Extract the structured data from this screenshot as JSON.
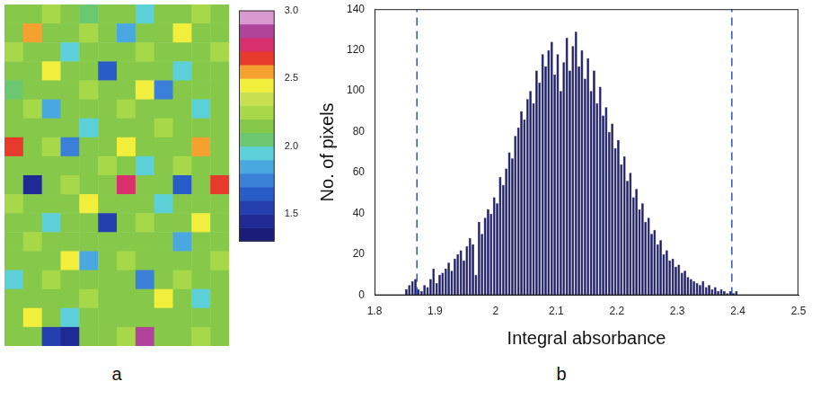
{
  "chart_data": [
    {
      "type": "heatmap",
      "panel_label": "a",
      "cells": [
        [
          2.1,
          2.1,
          2.2,
          2.1,
          2.0,
          2.1,
          2.1,
          1.9,
          2.1,
          2.1,
          2.2,
          2.1
        ],
        [
          2.1,
          2.5,
          2.1,
          2.1,
          2.2,
          2.1,
          1.8,
          2.1,
          2.1,
          2.4,
          2.1,
          2.1
        ],
        [
          2.2,
          2.1,
          2.1,
          1.9,
          2.1,
          2.1,
          2.1,
          2.2,
          2.1,
          2.1,
          2.1,
          2.2
        ],
        [
          2.1,
          2.1,
          2.4,
          2.1,
          2.1,
          1.6,
          2.1,
          2.1,
          2.1,
          1.9,
          2.1,
          2.1
        ],
        [
          2.0,
          2.1,
          2.1,
          2.1,
          2.2,
          2.1,
          2.1,
          2.4,
          1.7,
          2.1,
          2.1,
          2.1
        ],
        [
          2.1,
          2.2,
          1.8,
          2.1,
          2.1,
          2.1,
          2.2,
          2.1,
          2.1,
          2.1,
          1.9,
          2.1
        ],
        [
          2.1,
          2.1,
          2.1,
          2.1,
          1.9,
          2.1,
          2.1,
          2.1,
          2.2,
          2.1,
          2.1,
          2.1
        ],
        [
          2.6,
          2.1,
          2.2,
          1.7,
          2.1,
          2.1,
          2.4,
          2.1,
          2.1,
          2.1,
          2.5,
          2.1
        ],
        [
          2.1,
          2.1,
          2.1,
          2.1,
          2.1,
          2.2,
          2.1,
          1.9,
          2.1,
          2.2,
          2.1,
          2.1
        ],
        [
          2.1,
          1.4,
          2.1,
          2.2,
          2.1,
          2.1,
          2.7,
          2.1,
          2.1,
          1.6,
          2.1,
          2.6
        ],
        [
          2.2,
          2.1,
          2.1,
          2.1,
          2.4,
          2.1,
          2.1,
          2.1,
          1.9,
          2.1,
          2.1,
          2.1
        ],
        [
          2.1,
          2.1,
          1.9,
          2.1,
          2.1,
          1.5,
          2.1,
          2.2,
          2.1,
          2.1,
          2.4,
          2.1
        ],
        [
          2.1,
          2.2,
          2.1,
          2.1,
          2.1,
          2.1,
          2.1,
          2.1,
          2.1,
          1.8,
          2.1,
          2.1
        ],
        [
          2.1,
          2.1,
          2.1,
          2.4,
          1.8,
          2.1,
          2.2,
          2.1,
          2.1,
          2.1,
          2.1,
          2.2
        ],
        [
          1.9,
          2.1,
          2.2,
          2.1,
          2.1,
          2.1,
          2.1,
          1.7,
          2.1,
          2.2,
          2.1,
          2.1
        ],
        [
          2.1,
          2.1,
          2.1,
          2.1,
          2.2,
          2.1,
          2.1,
          2.1,
          2.4,
          2.1,
          1.9,
          2.1
        ],
        [
          2.1,
          2.4,
          2.1,
          1.9,
          2.1,
          2.1,
          2.1,
          2.1,
          2.1,
          2.1,
          2.1,
          2.1
        ],
        [
          2.1,
          2.1,
          1.5,
          1.4,
          2.1,
          2.1,
          2.2,
          2.8,
          2.1,
          2.1,
          2.2,
          2.1
        ]
      ],
      "colorbar_lim": [
        1.3,
        3.0
      ],
      "colorbar_ticks": [
        1.5,
        {
          "value": 2,
          "label": "2.0"
        },
        2.5,
        {
          "value": 3,
          "label": "3.0"
        }
      ],
      "tick_labels": false
    },
    {
      "type": "histogram",
      "panel_label": "b",
      "xlabel": "Integral absorbance",
      "ylabel": "No. of pixels",
      "color": "#1c1c70",
      "bins": [
        1.85,
        1.855,
        1.86,
        1.865,
        1.87,
        1.875,
        1.88,
        1.885,
        1.89,
        1.895,
        1.9,
        1.905,
        1.91,
        1.915,
        1.92,
        1.925,
        1.93,
        1.935,
        1.94,
        1.945,
        1.95,
        1.955,
        1.96,
        1.965,
        1.97,
        1.975,
        1.98,
        1.985,
        1.99,
        1.995,
        2,
        2.005,
        2.01,
        2.015,
        2.02,
        2.025,
        2.03,
        2.035,
        2.04,
        2.045,
        2.05,
        2.055,
        2.06,
        2.065,
        2.07,
        2.075,
        2.08,
        2.085,
        2.09,
        2.095,
        2.1,
        2.105,
        2.11,
        2.115,
        2.12,
        2.125,
        2.13,
        2.135,
        2.14,
        2.145,
        2.15,
        2.155,
        2.16,
        2.165,
        2.17,
        2.175,
        2.18,
        2.185,
        2.19,
        2.195,
        2.2,
        2.205,
        2.21,
        2.215,
        2.22,
        2.225,
        2.23,
        2.235,
        2.24,
        2.245,
        2.25,
        2.255,
        2.26,
        2.265,
        2.27,
        2.275,
        2.28,
        2.285,
        2.29,
        2.295,
        2.3,
        2.305,
        2.31,
        2.315,
        2.32,
        2.325,
        2.33,
        2.335,
        2.34,
        2.345,
        2.35,
        2.355,
        2.36,
        2.365,
        2.37,
        2.375,
        2.38,
        2.385,
        2.39,
        2.395,
        2.4
      ],
      "values": [
        3,
        5,
        7,
        8,
        3,
        2,
        5,
        4,
        8,
        13,
        6,
        10,
        11,
        13,
        16,
        12,
        18,
        20,
        22,
        17,
        24,
        28,
        25,
        10,
        36,
        30,
        38,
        42,
        40,
        48,
        45,
        58,
        54,
        62,
        70,
        67,
        78,
        82,
        90,
        86,
        96,
        100,
        94,
        110,
        104,
        118,
        112,
        120,
        124,
        108,
        118,
        100,
        114,
        126,
        110,
        122,
        129,
        112,
        120,
        106,
        116,
        100,
        110,
        94,
        102,
        88,
        92,
        80,
        84,
        72,
        76,
        64,
        68,
        56,
        60,
        48,
        52,
        42,
        45,
        36,
        38,
        30,
        32,
        25,
        27,
        20,
        22,
        17,
        18,
        14,
        15,
        11,
        12,
        9,
        8,
        7,
        6,
        5,
        7,
        4,
        5,
        3,
        4,
        2,
        3,
        2,
        1,
        2,
        1,
        2
      ],
      "cutoffs": [
        1.87,
        2.39
      ],
      "xlim": [
        1.8,
        2.5
      ],
      "xticks": [
        1.8,
        1.9,
        2,
        2.1,
        2.2,
        2.3,
        2.4,
        2.5
      ],
      "ylim": [
        0,
        140
      ],
      "yticks": [
        0,
        20,
        40,
        60,
        80,
        100,
        120,
        140
      ],
      "grid": false
    }
  ]
}
